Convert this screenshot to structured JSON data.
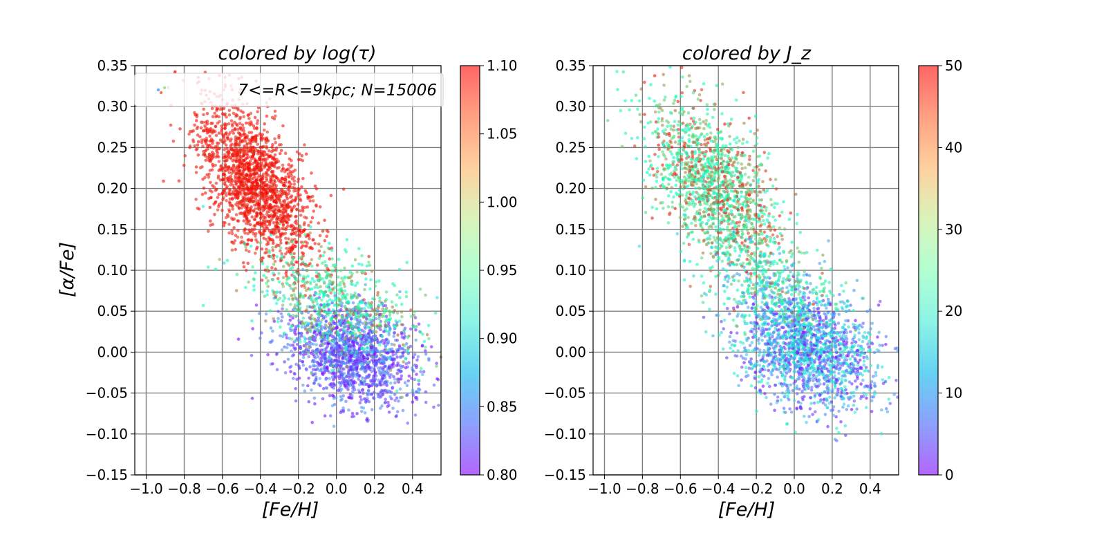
{
  "chart_data": [
    {
      "type": "scatter",
      "title": "colored by log(τ)",
      "xlabel": "[Fe/H]",
      "ylabel": "[α/Fe]",
      "xlim": [
        -1.06,
        0.55
      ],
      "ylim": [
        -0.15,
        0.35
      ],
      "xticks": [
        "−1.0",
        "−0.8",
        "−0.6",
        "−0.4",
        "−0.2",
        "0.0",
        "0.2",
        "0.4"
      ],
      "yticks": [
        "−0.15",
        "−0.10",
        "−0.05",
        "0.00",
        "0.05",
        "0.10",
        "0.15",
        "0.20",
        "0.25",
        "0.30",
        "0.35"
      ],
      "grid": true,
      "legend": {
        "label": "7<=R<=9kpc; N=15006",
        "placement": "top"
      },
      "colorbar": {
        "colormap": "rainbow",
        "range": [
          0.8,
          1.1
        ],
        "ticks": [
          "0.80",
          "0.85",
          "0.90",
          "0.95",
          "1.00",
          "1.05",
          "1.10"
        ]
      },
      "clusters": [
        {
          "name": "",
          "count": 1800,
          "center": [
            -0.42,
            0.205
          ],
          "spread": [
            0.16,
            0.04
          ],
          "rotation": -0.35,
          "color_value": [
            1.08,
            1.1
          ]
        },
        {
          "name": "",
          "count": 1500,
          "center": [
            0.08,
            -0.005
          ],
          "spread": [
            0.17,
            0.03
          ],
          "rotation": -0.1,
          "color_value": [
            0.8,
            0.87
          ]
        },
        {
          "name": "",
          "count": 700,
          "center": [
            0.0,
            0.06
          ],
          "spread": [
            0.22,
            0.03
          ],
          "rotation": -0.15,
          "color_value": [
            0.9,
            1.07
          ]
        }
      ],
      "colors": {
        "grid": "#808080",
        "axis": "#000000"
      }
    },
    {
      "type": "scatter",
      "title": "colored by J_z",
      "xlabel": "[Fe/H]",
      "ylabel": "",
      "xlim": [
        -1.06,
        0.55
      ],
      "ylim": [
        -0.15,
        0.35
      ],
      "xticks": [
        "−1.0",
        "−0.8",
        "−0.6",
        "−0.4",
        "−0.2",
        "0.0",
        "0.2",
        "0.4"
      ],
      "yticks": [
        "−0.15",
        "−0.10",
        "−0.05",
        "0.00",
        "0.05",
        "0.10",
        "0.15",
        "0.20",
        "0.25",
        "0.30",
        "0.35"
      ],
      "grid": true,
      "colorbar": {
        "colormap": "rainbow",
        "range": [
          0,
          50
        ],
        "ticks": [
          "0",
          "10",
          "20",
          "30",
          "40",
          "50"
        ]
      },
      "clusters": [
        {
          "name": "",
          "count": 1500,
          "center": [
            -0.42,
            0.2
          ],
          "spread": [
            0.18,
            0.045
          ],
          "rotation": -0.35,
          "color_value": [
            18,
            50
          ]
        },
        {
          "name": "",
          "count": 1800,
          "center": [
            0.07,
            0.005
          ],
          "spread": [
            0.19,
            0.035
          ],
          "rotation": -0.12,
          "color_value": [
            0,
            22
          ]
        },
        {
          "name": "",
          "count": 400,
          "center": [
            -0.1,
            0.08
          ],
          "spread": [
            0.2,
            0.03
          ],
          "rotation": -0.2,
          "color_value": [
            10,
            40
          ]
        }
      ],
      "colors": {
        "grid": "#808080",
        "axis": "#000000"
      }
    }
  ]
}
